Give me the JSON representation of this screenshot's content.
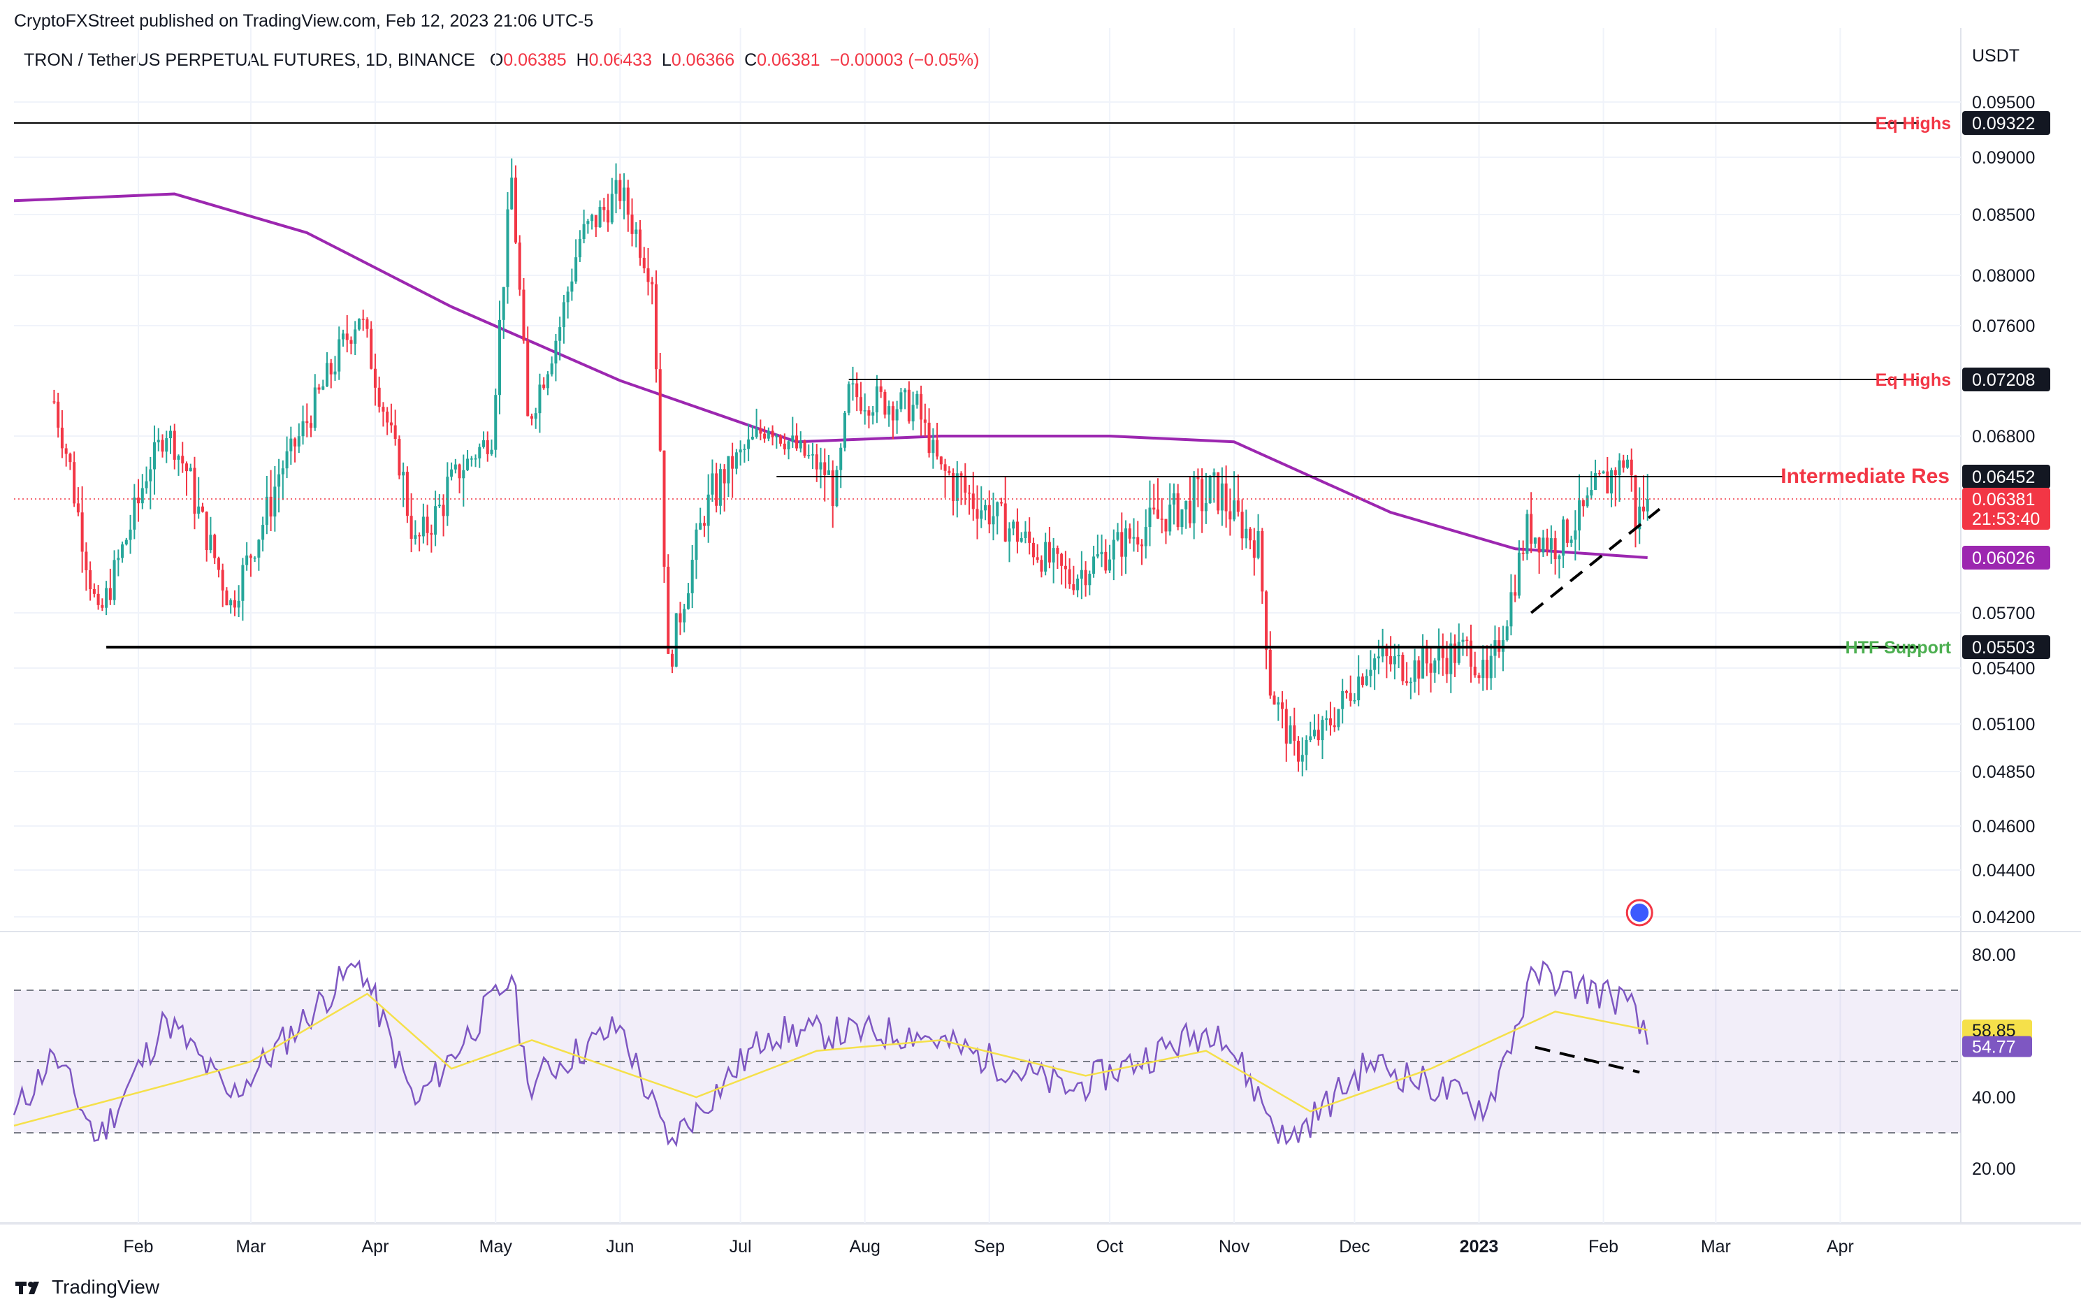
{
  "header": {
    "published": "CryptoFXStreet published on TradingView.com, Feb 12, 2023 21:06 UTC-5"
  },
  "symbol": {
    "name": "TRON / TetherUS PERPETUAL FUTURES, 1D, BINANCE",
    "o_label": "O",
    "o": "0.06385",
    "h_label": "H",
    "h": "0.06433",
    "l_label": "L",
    "l": "0.06366",
    "c_label": "C",
    "c": "0.06381",
    "change": "−0.00003 (−0.05%)"
  },
  "footer": {
    "brand": "TradingView"
  },
  "colors": {
    "up": "#26a69a",
    "down": "#f23645",
    "ma": "#9c27b0",
    "rsi": "#7e57c2",
    "rsi_ma": "#f5e04a",
    "support": "#4caf50",
    "resistance": "#f23645"
  },
  "chart_data": [
    {
      "type": "candlestick",
      "currency": "USDT",
      "y_ticks": [
        0.095,
        0.09,
        0.085,
        0.08,
        0.076,
        0.068,
        0.057,
        0.054,
        0.051,
        0.0485,
        0.046,
        0.044,
        0.042
      ],
      "y_tick_labels": [
        "0.09500",
        "0.09000",
        "0.08500",
        "0.08000",
        "0.07600",
        "0.06800",
        "0.05700",
        "0.05400",
        "0.05100",
        "0.04850",
        "0.04600",
        "0.04400",
        "0.04200"
      ],
      "x_tick_labels": [
        "Feb",
        "Mar",
        "Apr",
        "May",
        "Jun",
        "Jul",
        "Aug",
        "Sep",
        "Oct",
        "Nov",
        "Dec",
        "2023",
        "Feb",
        "Mar",
        "Apr"
      ],
      "grid": true,
      "key_points": [
        {
          "date": "2022-01-11",
          "close": 0.0705
        },
        {
          "date": "2022-01-22",
          "close": 0.0565
        },
        {
          "date": "2022-02-08",
          "close": 0.0685
        },
        {
          "date": "2022-02-24",
          "close": 0.0575
        },
        {
          "date": "2022-03-28",
          "close": 0.077
        },
        {
          "date": "2022-04-11",
          "close": 0.061
        },
        {
          "date": "2022-04-30",
          "close": 0.068
        },
        {
          "date": "2022-05-05",
          "close": 0.088
        },
        {
          "date": "2022-05-09",
          "close": 0.069
        },
        {
          "date": "2022-05-17",
          "close": 0.076
        },
        {
          "date": "2022-05-22",
          "close": 0.083
        },
        {
          "date": "2022-06-01",
          "close": 0.087
        },
        {
          "date": "2022-06-09",
          "close": 0.08
        },
        {
          "date": "2022-06-13",
          "close": 0.054
        },
        {
          "date": "2022-06-22",
          "close": 0.063
        },
        {
          "date": "2022-07-08",
          "close": 0.069
        },
        {
          "date": "2022-07-25",
          "close": 0.064
        },
        {
          "date": "2022-07-28",
          "close": 0.071
        },
        {
          "date": "2022-08-14",
          "close": 0.07
        },
        {
          "date": "2022-08-20",
          "close": 0.065
        },
        {
          "date": "2022-09-04",
          "close": 0.0625
        },
        {
          "date": "2022-09-21",
          "close": 0.059
        },
        {
          "date": "2022-10-12",
          "close": 0.0625
        },
        {
          "date": "2022-10-28",
          "close": 0.064
        },
        {
          "date": "2022-11-07",
          "close": 0.061
        },
        {
          "date": "2022-11-10",
          "close": 0.053
        },
        {
          "date": "2022-11-16",
          "close": 0.0495
        },
        {
          "date": "2022-11-23",
          "close": 0.0505
        },
        {
          "date": "2022-12-05",
          "close": 0.0545
        },
        {
          "date": "2022-12-15",
          "close": 0.054
        },
        {
          "date": "2022-12-30",
          "close": 0.055
        },
        {
          "date": "2023-01-03",
          "close": 0.053
        },
        {
          "date": "2023-01-08",
          "close": 0.057
        },
        {
          "date": "2023-01-13",
          "close": 0.062
        },
        {
          "date": "2023-01-20",
          "close": 0.061
        },
        {
          "date": "2023-02-07",
          "close": 0.066
        },
        {
          "date": "2023-02-09",
          "close": 0.0625
        },
        {
          "date": "2023-02-12",
          "close": 0.06381
        }
      ],
      "moving_average": [
        {
          "date": "2022-01-01",
          "value": 0.0862
        },
        {
          "date": "2022-02-10",
          "value": 0.0868
        },
        {
          "date": "2022-03-15",
          "value": 0.0835
        },
        {
          "date": "2022-04-20",
          "value": 0.0775
        },
        {
          "date": "2022-06-01",
          "value": 0.072
        },
        {
          "date": "2022-07-15",
          "value": 0.0675
        },
        {
          "date": "2022-08-20",
          "value": 0.068
        },
        {
          "date": "2022-10-01",
          "value": 0.068
        },
        {
          "date": "2022-11-01",
          "value": 0.0675
        },
        {
          "date": "2022-12-10",
          "value": 0.063
        },
        {
          "date": "2023-01-10",
          "value": 0.0608
        },
        {
          "date": "2023-02-12",
          "value": 0.06026
        }
      ],
      "horizontal_levels": [
        {
          "label": "Eq Highs",
          "price_label": "0.09322",
          "value": 0.09322
        },
        {
          "label": "Eq Highs",
          "price_label": "0.07208",
          "value": 0.07208
        },
        {
          "label": "Intermediate Res",
          "price_label": "0.06452",
          "value": 0.06452
        },
        {
          "label": "HTF Support",
          "price_label": "0.05503",
          "value": 0.05503
        }
      ],
      "price_tags": {
        "last": "0.06381",
        "countdown": "21:53:40",
        "ma": "0.06026",
        "level_ma": 0.06026,
        "res": "0.06452",
        "eq1": "0.09322",
        "eq2": "0.07208",
        "sup": "0.05503"
      },
      "trendline": [
        {
          "date": "2023-01-14",
          "value": 0.057
        },
        {
          "date": "2023-02-15",
          "value": 0.0632
        }
      ]
    },
    {
      "type": "line",
      "indicator": "RSI",
      "y_ticks": [
        80,
        40,
        20
      ],
      "y_tick_labels": [
        "80.00",
        "40.00",
        "20.00"
      ],
      "band": [
        30,
        70
      ],
      "mid": 50,
      "values_label": {
        "ma": "58.85",
        "rsi": "54.77"
      },
      "rsi_points": [
        {
          "date": "2022-01-01",
          "value": 35
        },
        {
          "date": "2022-01-11",
          "value": 52
        },
        {
          "date": "2022-01-22",
          "value": 28
        },
        {
          "date": "2022-02-08",
          "value": 62
        },
        {
          "date": "2022-02-24",
          "value": 40
        },
        {
          "date": "2022-03-28",
          "value": 78
        },
        {
          "date": "2022-04-11",
          "value": 38
        },
        {
          "date": "2022-05-05",
          "value": 74
        },
        {
          "date": "2022-05-09",
          "value": 44
        },
        {
          "date": "2022-06-01",
          "value": 60
        },
        {
          "date": "2022-06-13",
          "value": 27
        },
        {
          "date": "2022-07-08",
          "value": 58
        },
        {
          "date": "2022-08-14",
          "value": 58
        },
        {
          "date": "2022-09-21",
          "value": 42
        },
        {
          "date": "2022-10-28",
          "value": 60
        },
        {
          "date": "2022-11-14",
          "value": 27
        },
        {
          "date": "2022-12-05",
          "value": 50
        },
        {
          "date": "2023-01-03",
          "value": 37
        },
        {
          "date": "2023-01-15",
          "value": 75
        },
        {
          "date": "2023-02-07",
          "value": 67
        },
        {
          "date": "2023-02-12",
          "value": 54.77
        }
      ],
      "rsi_ma_points": [
        {
          "date": "2022-01-01",
          "value": 32
        },
        {
          "date": "2022-02-10",
          "value": 44
        },
        {
          "date": "2022-03-01",
          "value": 50
        },
        {
          "date": "2022-03-30",
          "value": 69
        },
        {
          "date": "2022-04-20",
          "value": 48
        },
        {
          "date": "2022-05-10",
          "value": 56
        },
        {
          "date": "2022-06-20",
          "value": 40
        },
        {
          "date": "2022-07-20",
          "value": 53
        },
        {
          "date": "2022-08-20",
          "value": 56
        },
        {
          "date": "2022-09-25",
          "value": 46
        },
        {
          "date": "2022-10-25",
          "value": 53
        },
        {
          "date": "2022-11-20",
          "value": 36
        },
        {
          "date": "2022-12-20",
          "value": 48
        },
        {
          "date": "2023-01-20",
          "value": 64
        },
        {
          "date": "2023-02-12",
          "value": 58.85
        }
      ],
      "trendline": [
        {
          "date": "2023-01-15",
          "value": 54
        },
        {
          "date": "2023-02-10",
          "value": 47
        }
      ]
    }
  ]
}
